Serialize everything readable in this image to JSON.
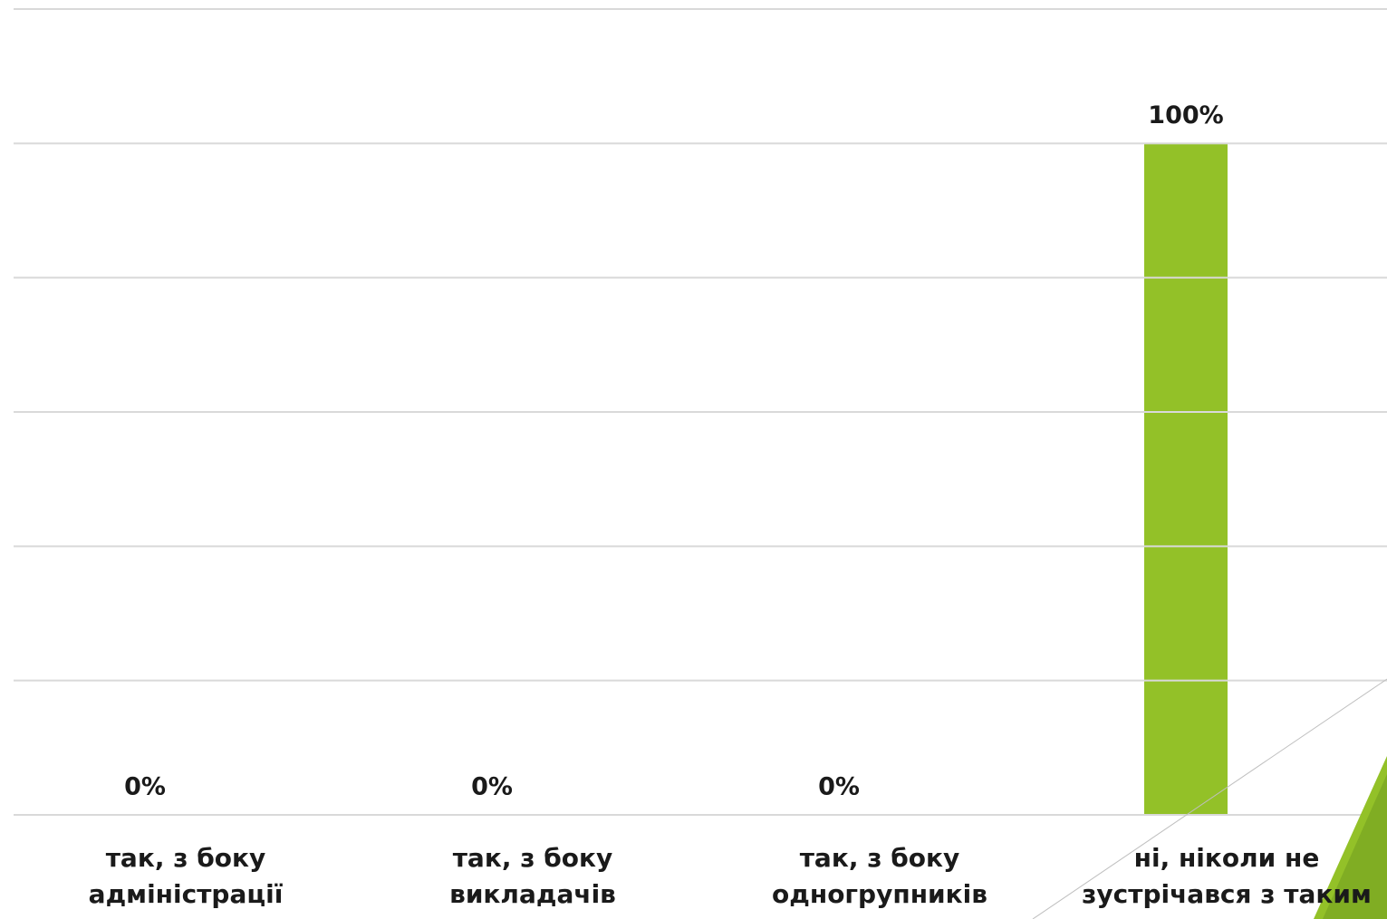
{
  "chart_data": {
    "type": "bar",
    "categories": [
      "так, з боку адміністрації",
      "так, з боку викладачів",
      "так, з боку одногрупників",
      "ні, ніколи не зустрічався з таким"
    ],
    "values": [
      0,
      0,
      0,
      100
    ],
    "value_labels": [
      "0%",
      "0%",
      "0%",
      "100%"
    ],
    "color": "#93c128",
    "ylim": [
      0,
      120
    ],
    "yticks": [
      0,
      20,
      40,
      60,
      80,
      100,
      120
    ],
    "grid": true
  }
}
